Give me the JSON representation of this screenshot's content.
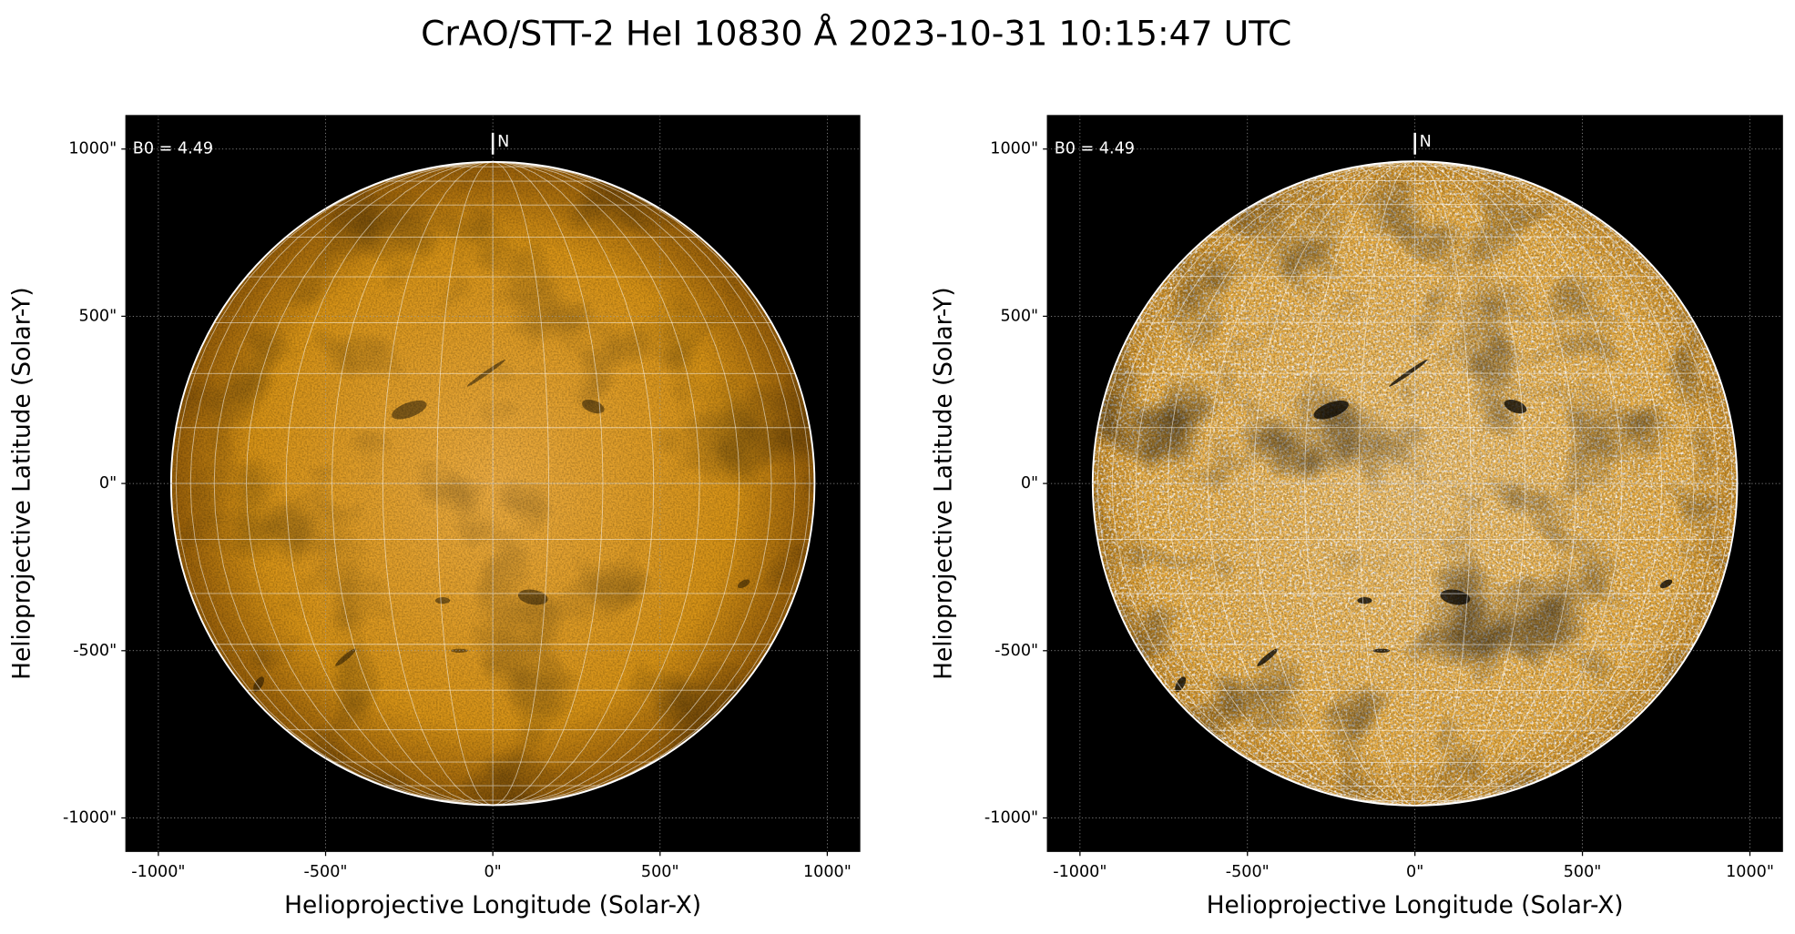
{
  "title": "CrAO/STT-2 HeI 10830 Å 2023-10-31 10:15:47 UTC",
  "chart_data": [
    {
      "type": "image",
      "xlabel": "Helioprojective Longitude (Solar-X)",
      "ylabel": "Helioprojective Latitude (Solar-Y)",
      "annotation": "B0 = 4.49",
      "north_label": "N",
      "color": "#d4900f",
      "disk_radius": 962,
      "xlim": [
        -1097,
        1097
      ],
      "ylim": [
        -1100,
        1100
      ],
      "xticks": [
        {
          "value": -1000,
          "label": "-1000\""
        },
        {
          "value": -500,
          "label": "-500\""
        },
        {
          "value": 0,
          "label": "0\""
        },
        {
          "value": 500,
          "label": "500\""
        },
        {
          "value": 1000,
          "label": "1000\""
        }
      ],
      "yticks": [
        {
          "value": -1000,
          "label": "-1000\""
        },
        {
          "value": -500,
          "label": "-500\""
        },
        {
          "value": 0,
          "label": "0\""
        },
        {
          "value": 500,
          "label": "500\""
        },
        {
          "value": 1000,
          "label": "1000\""
        }
      ],
      "grid": true
    },
    {
      "type": "image",
      "xlabel": "Helioprojective Longitude (Solar-X)",
      "ylabel": "Helioprojective Latitude (Solar-Y)",
      "annotation": "B0 = 4.49",
      "north_label": "N",
      "color": "#eaa530",
      "disk_radius": 962,
      "xlim": [
        -1097,
        1097
      ],
      "ylim": [
        -1100,
        1100
      ],
      "xticks": [
        {
          "value": -1000,
          "label": "-1000\""
        },
        {
          "value": -500,
          "label": "-500\""
        },
        {
          "value": 0,
          "label": "0\""
        },
        {
          "value": 500,
          "label": "500\""
        },
        {
          "value": 1000,
          "label": "1000\""
        }
      ],
      "yticks": [
        {
          "value": -1000,
          "label": "-1000\""
        },
        {
          "value": -500,
          "label": "-500\""
        },
        {
          "value": 0,
          "label": "0\""
        },
        {
          "value": 500,
          "label": "500\""
        },
        {
          "value": 1000,
          "label": "1000\""
        }
      ],
      "grid": true
    }
  ]
}
